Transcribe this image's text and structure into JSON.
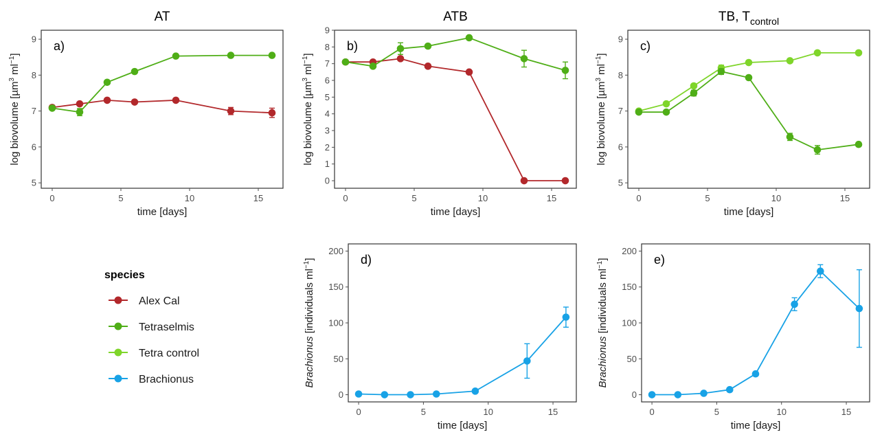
{
  "colors": {
    "alex": "#b2282b",
    "tetra": "#4fae17",
    "tetractrl": "#7fd52a",
    "brach": "#18a2e6",
    "panel_border": "#333333",
    "tick": "#4d4d4d"
  },
  "legend": {
    "title": "species",
    "items": [
      {
        "name": "Alex Cal",
        "color": "#b2282b"
      },
      {
        "name": "Tetraselmis",
        "color": "#4fae17"
      },
      {
        "name": "Tetra control",
        "color": "#7fd52a"
      },
      {
        "name": "Brachionus",
        "color": "#18a2e6"
      }
    ]
  },
  "column_titles": [
    {
      "text": "AT",
      "sub": ""
    },
    {
      "text": "ATB",
      "sub": ""
    },
    {
      "text": "TB, T",
      "sub": "control"
    }
  ],
  "chart_data": [
    {
      "id": "a",
      "type": "line",
      "label": "a)",
      "xlabel": "time [days]",
      "ylabel_prefix": "log biovolume [µm",
      "ylabel_sup1": "3",
      "ylabel_mid": " ml",
      "ylabel_sup2": "−1",
      "ylabel_suffix": "]",
      "xlim": [
        -0.8,
        16.8
      ],
      "ylim": [
        4.85,
        9.25
      ],
      "xticks": [
        0,
        5,
        10,
        15
      ],
      "yticks": [
        5,
        6,
        7,
        8,
        9
      ],
      "series": [
        {
          "name": "Alex Cal",
          "color_key": "alex",
          "x": [
            0,
            2,
            4,
            6,
            9,
            13,
            16
          ],
          "y": [
            7.1,
            7.2,
            7.3,
            7.25,
            7.3,
            7.0,
            6.95
          ],
          "err": [
            0.03,
            0.03,
            0.04,
            0.03,
            0.04,
            0.1,
            0.13
          ]
        },
        {
          "name": "Tetraselmis",
          "color_key": "tetra",
          "x": [
            0,
            2,
            4,
            6,
            9,
            13,
            16
          ],
          "y": [
            7.08,
            6.97,
            7.8,
            8.1,
            8.53,
            8.55,
            8.55
          ],
          "err": [
            0.03,
            0.1,
            0.04,
            0.04,
            0.04,
            0.04,
            0.03
          ]
        }
      ]
    },
    {
      "id": "b",
      "type": "line",
      "label": "b)",
      "xlabel": "time [days]",
      "ylabel_prefix": "log biovolume [µm",
      "ylabel_sup1": "3",
      "ylabel_mid": " ml",
      "ylabel_sup2": "−1",
      "ylabel_suffix": "]",
      "xlim": [
        -0.8,
        16.8
      ],
      "ylim": [
        -0.45,
        9.0
      ],
      "xticks": [
        0,
        5,
        10,
        15
      ],
      "yticks": [
        0,
        1,
        2,
        3,
        4,
        5,
        6,
        7,
        8,
        9
      ],
      "series": [
        {
          "name": "Alex Cal",
          "color_key": "alex",
          "x": [
            0,
            2,
            4,
            6,
            9,
            13,
            16
          ],
          "y": [
            7.1,
            7.1,
            7.3,
            6.85,
            6.5,
            0.0,
            0.0
          ],
          "err": [
            0.05,
            0.05,
            0.1,
            0.05,
            0.05,
            0.02,
            0.02
          ]
        },
        {
          "name": "Tetraselmis",
          "color_key": "tetra",
          "x": [
            0,
            2,
            4,
            6,
            9,
            13,
            16
          ],
          "y": [
            7.1,
            6.85,
            7.9,
            8.05,
            8.55,
            7.3,
            6.6
          ],
          "err": [
            0.05,
            0.1,
            0.35,
            0.1,
            0.1,
            0.5,
            0.5
          ]
        }
      ]
    },
    {
      "id": "c",
      "type": "line",
      "label": "c)",
      "xlabel": "time [days]",
      "ylabel_prefix": "log biovolume [µm",
      "ylabel_sup1": "3",
      "ylabel_mid": " ml",
      "ylabel_sup2": "−1",
      "ylabel_suffix": "]",
      "xlim": [
        -0.8,
        16.8
      ],
      "ylim": [
        4.85,
        9.25
      ],
      "xticks": [
        0,
        5,
        10,
        15
      ],
      "yticks": [
        5,
        6,
        7,
        8,
        9
      ],
      "series": [
        {
          "name": "Tetra control",
          "color_key": "tetractrl",
          "x": [
            0,
            2,
            4,
            6,
            8,
            11,
            13,
            16
          ],
          "y": [
            7.0,
            7.2,
            7.7,
            8.2,
            8.35,
            8.4,
            8.62,
            8.62
          ],
          "err": [
            0.03,
            0.03,
            0.05,
            0.08,
            0.03,
            0.03,
            0.04,
            0.04
          ]
        },
        {
          "name": "Tetraselmis",
          "color_key": "tetra",
          "x": [
            0,
            2,
            4,
            6,
            8,
            11,
            13,
            16
          ],
          "y": [
            6.97,
            6.97,
            7.5,
            8.1,
            7.93,
            6.28,
            5.92,
            6.07
          ],
          "err": [
            0.03,
            0.03,
            0.08,
            0.08,
            0.04,
            0.1,
            0.12,
            0.04
          ]
        }
      ]
    },
    {
      "id": "d",
      "type": "line",
      "label": "d)",
      "xlabel": "time [days]",
      "ylabel_italic": "Brachionus",
      "ylabel_prefix": " [individuals ml",
      "ylabel_sup2": "−1",
      "ylabel_suffix": "]",
      "xlim": [
        -0.8,
        16.8
      ],
      "ylim": [
        -10,
        210
      ],
      "xticks": [
        0,
        5,
        10,
        15
      ],
      "yticks": [
        0,
        50,
        100,
        150,
        200
      ],
      "series": [
        {
          "name": "Brachionus",
          "color_key": "brach",
          "x": [
            0,
            2,
            4,
            6,
            9,
            13,
            16
          ],
          "y": [
            1,
            0,
            0,
            1,
            5,
            47,
            108
          ],
          "err": [
            0.5,
            0.5,
            0.5,
            0.5,
            1,
            24,
            14
          ]
        }
      ]
    },
    {
      "id": "e",
      "type": "line",
      "label": "e)",
      "xlabel": "time [days]",
      "ylabel_italic": "Brachionus",
      "ylabel_prefix": " [individuals ml",
      "ylabel_sup2": "−1",
      "ylabel_suffix": "]",
      "xlim": [
        -0.8,
        16.8
      ],
      "ylim": [
        -10,
        210
      ],
      "xticks": [
        0,
        5,
        10,
        15
      ],
      "yticks": [
        0,
        50,
        100,
        150,
        200
      ],
      "series": [
        {
          "name": "Brachionus",
          "color_key": "brach",
          "x": [
            0,
            2,
            4,
            6,
            8,
            11,
            13,
            16
          ],
          "y": [
            0,
            0,
            2,
            7,
            29,
            126,
            172,
            120
          ],
          "err": [
            0.5,
            0.5,
            0.5,
            1,
            2,
            9,
            9,
            54
          ]
        }
      ]
    }
  ]
}
